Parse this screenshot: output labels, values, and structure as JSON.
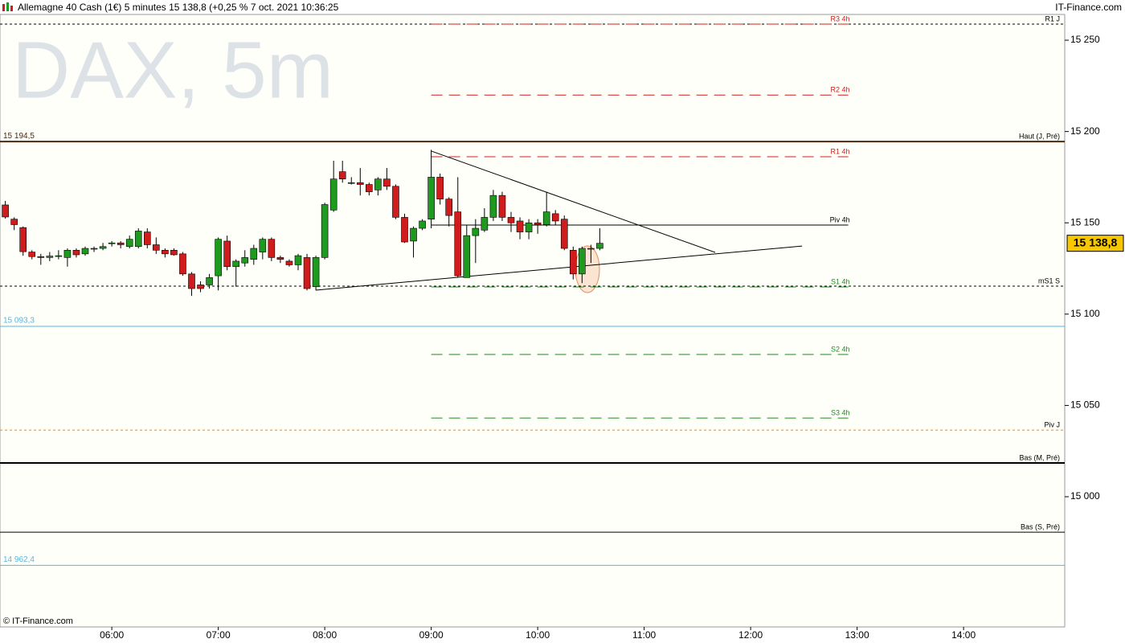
{
  "chart_data": {
    "type": "candlestick",
    "title": "Allemagne 40 Cash (1€) 5 minutes 15 138,8 (+0,25 % 7 oct. 2021 10:36:25",
    "source": "IT-Finance.com",
    "watermark": "DAX, 5m",
    "footer": "© IT-Finance.com",
    "up_color": "#1e9a1e",
    "down_color": "#d01c1c",
    "x": [
      "05:00",
      "05:05",
      "05:10",
      "05:15",
      "05:20",
      "05:25",
      "05:30",
      "05:35",
      "05:40",
      "05:45",
      "05:50",
      "05:55",
      "06:00",
      "06:05",
      "06:10",
      "06:15",
      "06:20",
      "06:25",
      "06:30",
      "06:35",
      "06:40",
      "06:45",
      "06:50",
      "06:55",
      "07:00",
      "07:05",
      "07:10",
      "07:15",
      "07:20",
      "07:25",
      "07:30",
      "07:35",
      "07:40",
      "07:45",
      "07:50",
      "07:55",
      "08:00",
      "08:05",
      "08:10",
      "08:15",
      "08:20",
      "08:25",
      "08:30",
      "08:35",
      "08:40",
      "08:45",
      "08:50",
      "08:55",
      "09:00",
      "09:05",
      "09:10",
      "09:15",
      "09:20",
      "09:25",
      "09:30",
      "09:35",
      "09:40",
      "09:45",
      "09:50",
      "09:55",
      "10:00",
      "10:05",
      "10:10",
      "10:15",
      "10:20",
      "10:25",
      "10:30",
      "10:35"
    ],
    "open": [
      15159.8,
      15152,
      15147.4,
      15134,
      15131.5,
      15131,
      15132,
      15131,
      15135,
      15133,
      15136,
      15136,
      15139,
      15139,
      15137,
      15137,
      15145,
      15138,
      15135,
      15135,
      15133,
      15122,
      15116,
      15116,
      15121,
      15140,
      15126,
      15128,
      15130,
      15134,
      15141,
      15131,
      15129,
      15127,
      15131,
      15115,
      15131,
      15157,
      15178,
      15172,
      15172,
      15171,
      15168,
      15174,
      15170,
      15153,
      15140,
      15147,
      15152,
      15175,
      15163,
      15156,
      15120,
      15143,
      15146,
      15153,
      15165,
      15153,
      15151,
      15145,
      15150,
      15149,
      15155,
      15152,
      15135,
      15122,
      15136,
      15136
    ],
    "high": [
      15162,
      15153,
      15148,
      15135,
      15133,
      15134,
      15135,
      15136,
      15136,
      15137,
      15137,
      15139,
      15140,
      15140,
      15143,
      15147,
      15147,
      15142,
      15136,
      15136,
      15134,
      15123,
      15118,
      15122,
      15142,
      15143,
      15130,
      15135,
      15138,
      15142,
      15142,
      15132,
      15130,
      15133,
      15133,
      15132,
      15161,
      15184,
      15184,
      15175,
      15180,
      15172,
      15175,
      15180,
      15171,
      15155,
      15148,
      15152,
      15190,
      15177,
      15164,
      15175,
      15149,
      15152,
      15158,
      15168,
      15167,
      15156,
      15153,
      15152,
      15152,
      15167,
      15157,
      15154,
      15137,
      15137,
      15138,
      15147
    ],
    "low": [
      15152.3,
      15146,
      15132,
      15130,
      15127,
      15129,
      15130,
      15126,
      15131,
      15132,
      15134,
      15135,
      15137,
      15136,
      15136,
      15136,
      15136,
      15133,
      15131,
      15132,
      15121,
      15110,
      15112,
      15114,
      15113,
      15124,
      15115,
      15126,
      15127,
      15130,
      15129,
      15128,
      15126,
      15124,
      15113,
      15113,
      15130,
      15156,
      15172,
      15171,
      15165,
      15165,
      15165,
      15168,
      15152,
      15139,
      15131,
      15146,
      15147,
      15160,
      15148,
      15120,
      15120,
      15128,
      15145,
      15151,
      15151,
      15145,
      15141,
      15141,
      15144,
      15148,
      15149,
      15135,
      15119,
      15117,
      15128,
      15135
    ],
    "close": [
      15153.2,
      15149,
      15134.2,
      15131.5,
      15131,
      15131.8,
      15132,
      15135,
      15132.5,
      15136,
      15136,
      15137,
      15139,
      15138,
      15141,
      15145.5,
      15138,
      15135,
      15133,
      15132.5,
      15122,
      15114,
      15114,
      15120,
      15141,
      15126,
      15129,
      15131,
      15136,
      15141,
      15131,
      15130,
      15127,
      15132,
      15114,
      15131,
      15160,
      15174,
      15174,
      15172,
      15171,
      15167,
      15174,
      15170,
      15153,
      15139.5,
      15147,
      15151,
      15175,
      15163,
      15154,
      15121,
      15143,
      15147,
      15153,
      15165,
      15153,
      15150,
      15145,
      15150,
      15149,
      15156,
      15151,
      15136,
      15122,
      15136,
      15136,
      15138.8
    ],
    "last": {
      "value": 15138.8,
      "label": "15 138,8"
    },
    "xlim": [
      "04:57",
      "14:57"
    ],
    "xticks": [
      "06:00",
      "07:00",
      "08:00",
      "09:00",
      "10:00",
      "11:00",
      "12:00",
      "13:00",
      "14:00"
    ],
    "ylim": [
      14928.7,
      15264.1
    ],
    "yticks": [
      {
        "value": 15000,
        "label": "15 000"
      },
      {
        "value": 15050,
        "label": "15 050"
      },
      {
        "value": 15100,
        "label": "15 100"
      },
      {
        "value": 15150,
        "label": "15 150"
      },
      {
        "value": 15200,
        "label": "15 200"
      },
      {
        "value": 15250,
        "label": "15 250"
      }
    ],
    "levels": [
      {
        "label": "R1 J",
        "value": 15258.8,
        "color": "#000000",
        "style": "dashed",
        "width": 1
      },
      {
        "label": "Haut (J, Pré)",
        "value": 15194.5,
        "value_label": "15 194,5",
        "color": "#4a2a10",
        "style": "solid",
        "width": 2
      },
      {
        "label": "mS1 S",
        "value": 15115.3,
        "color": "#000000",
        "style": "dashed",
        "width": 1
      },
      {
        "value": 15093.3,
        "value_label": "15 093,3",
        "color": "#5ab4e0",
        "style": "solid",
        "width": 1
      },
      {
        "label": "Piv J",
        "value": 15036.5,
        "color": "#e0883a",
        "style": "dashed",
        "width": 1
      },
      {
        "label": "Bas (M, Pré)",
        "value": 15018.5,
        "color": "#000000",
        "style": "solid",
        "width": 2
      },
      {
        "label": "Bas (S, Pré)",
        "value": 14980.6,
        "color": "#000000",
        "style": "solid",
        "width": 1
      },
      {
        "value": 14962.4,
        "value_label": "14 962,4",
        "color": "#5ab4e0",
        "style": "solid",
        "width": 1
      }
    ],
    "pivots": {
      "x": [
        "09:00",
        "12:55"
      ],
      "levels": [
        {
          "label": "R3 4h",
          "value": 15258.8,
          "color": "#d01c1c",
          "style": "long-dash"
        },
        {
          "label": "R2 4h",
          "value": 15220,
          "color": "#d01c1c",
          "style": "long-dash"
        },
        {
          "label": "R1 4h",
          "value": 15186.2,
          "color": "#d01c1c",
          "style": "long-dash"
        },
        {
          "label": "Piv 4h",
          "value": 15148.8,
          "color": "#000000",
          "style": "solid"
        },
        {
          "label": "S1 4h",
          "value": 15114.9,
          "color": "#1e8a1e",
          "style": "long-dash"
        },
        {
          "label": "S2 4h",
          "value": 15077.9,
          "color": "#1e8a1e",
          "style": "long-dash"
        },
        {
          "label": "S3 4h",
          "value": 15043.1,
          "color": "#1e8a1e",
          "style": "long-dash"
        }
      ]
    },
    "trendlines": [
      {
        "x": [
          "09:00",
          "11:40"
        ],
        "y": [
          15189.3,
          15133.8
        ]
      },
      {
        "x": [
          "07:55",
          "12:29"
        ],
        "y": [
          15113.1,
          15137.3
        ]
      }
    ]
  }
}
